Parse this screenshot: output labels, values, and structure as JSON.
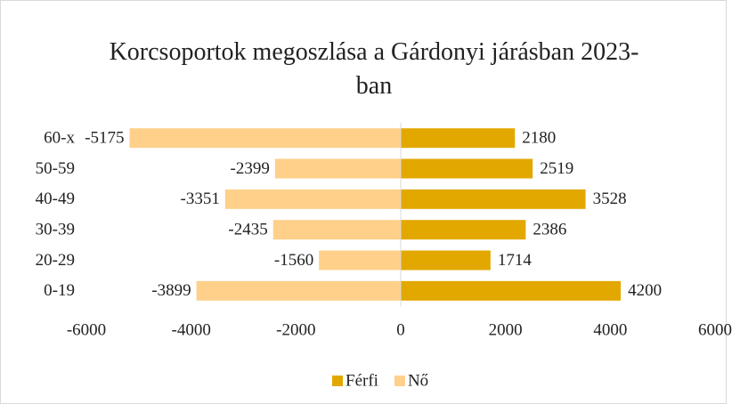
{
  "chart_data": {
    "type": "bar",
    "orientation": "horizontal",
    "title": "Korcsoportok megoszlása a Gárdonyi járásban 2023-ban",
    "categories": [
      "0-19",
      "20-29",
      "30-39",
      "40-49",
      "50-59",
      "60-x"
    ],
    "series": [
      {
        "name": "Férfi",
        "color": "#e2a800",
        "values": [
          4200,
          1714,
          2386,
          3528,
          2519,
          2180
        ]
      },
      {
        "name": "Nő",
        "color": "#fed08a",
        "values": [
          -3899,
          -1560,
          -2435,
          -3351,
          -2399,
          -5175
        ]
      }
    ],
    "xlim": [
      -6000,
      6000
    ],
    "xticks": [
      -6000,
      -4000,
      -2000,
      0,
      2000,
      4000,
      6000
    ],
    "legend": "bottom",
    "grid": false
  }
}
